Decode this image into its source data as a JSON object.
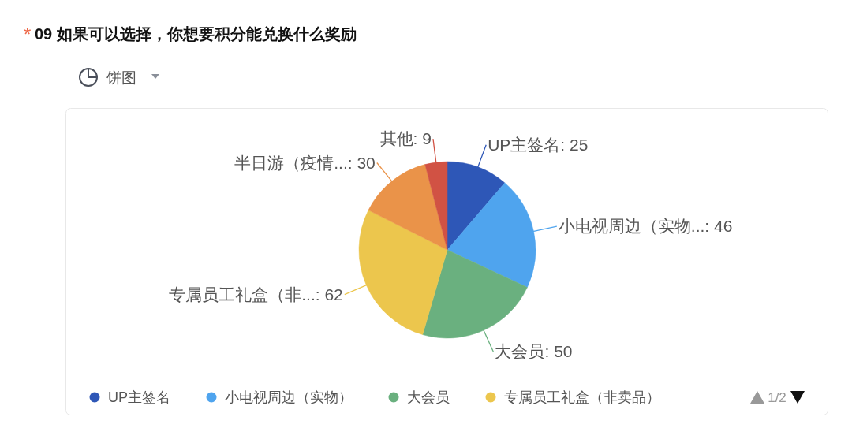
{
  "chart_data": {
    "type": "pie",
    "title": "09 如果可以选择，你想要积分能兑换什么奖励",
    "categories": [
      "UP主签名",
      "小电视周边（实物）",
      "大会员",
      "专属员工礼盒（非卖品）",
      null,
      null
    ],
    "values": [
      25,
      46,
      50,
      62,
      30,
      9
    ],
    "colors": [
      "#2e57b7",
      "#4fa4ee",
      "#6ab07f",
      "#ecc64d",
      "#ea9349",
      "#d15244"
    ],
    "value_labels": [
      "UP主签名: 25",
      "小电视周边（实物...: 46",
      "大会员: 50",
      "专属员工礼盒（非...: 62",
      "半日游（疫情...: 30",
      "其他: 9"
    ],
    "legend": "bottom",
    "annotations": [
      "*",
      "饼图",
      "1/2"
    ]
  }
}
